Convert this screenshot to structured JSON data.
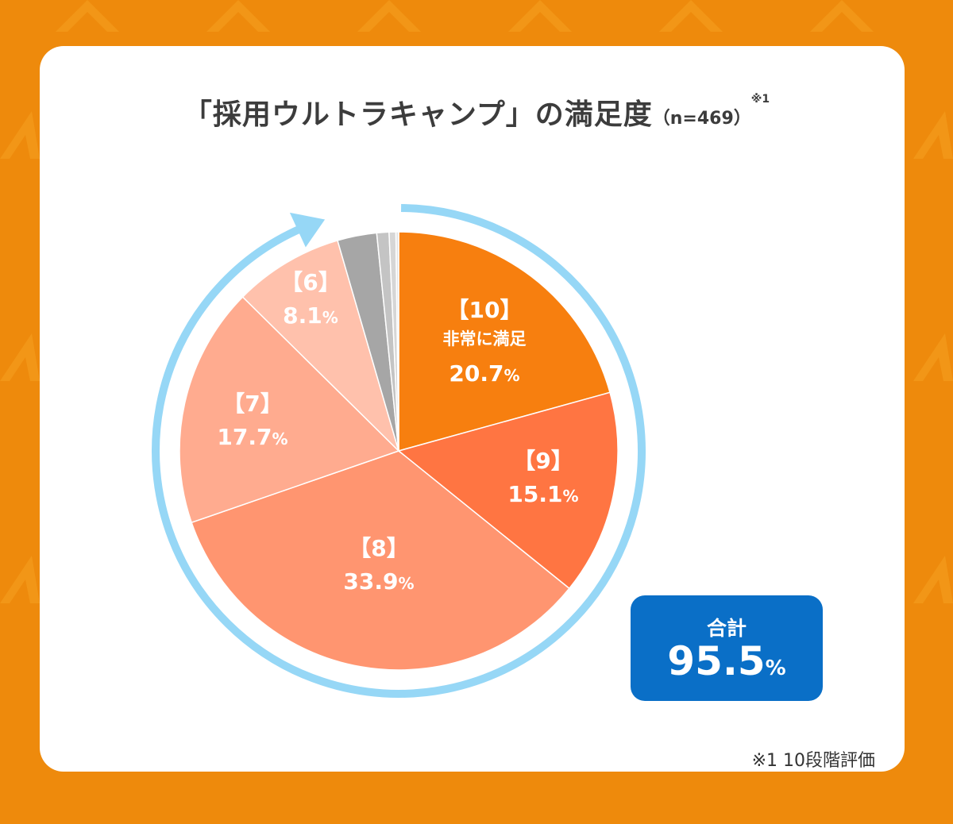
{
  "title": {
    "main": "「採用ウルトラキャンプ」の満足度",
    "sample": "（n=469）",
    "note_mark": "※1"
  },
  "chart_data": {
    "type": "pie",
    "slices": [
      {
        "rating": "【10】",
        "sublabel": "非常に満足",
        "value": 20.7,
        "value_text": "20.7",
        "color": "#f77f0f"
      },
      {
        "rating": "【9】",
        "sublabel": "",
        "value": 15.1,
        "value_text": "15.1",
        "color": "#ff7542"
      },
      {
        "rating": "【8】",
        "sublabel": "",
        "value": 33.9,
        "value_text": "33.9",
        "color": "#ff9570"
      },
      {
        "rating": "【7】",
        "sublabel": "",
        "value": 17.7,
        "value_text": "17.7",
        "color": "#ffab8f"
      },
      {
        "rating": "【6】",
        "sublabel": "",
        "value": 8.1,
        "value_text": "8.1",
        "color": "#ffc1ac"
      },
      {
        "rating": "",
        "sublabel": "",
        "value": 2.9,
        "value_text": "",
        "color": "#a6a6a6"
      },
      {
        "rating": "",
        "sublabel": "",
        "value": 0.9,
        "value_text": "",
        "color": "#c4c4c4"
      },
      {
        "rating": "",
        "sublabel": "",
        "value": 0.5,
        "value_text": "",
        "color": "#d6d6d6"
      },
      {
        "rating": "",
        "sublabel": "",
        "value": 0.2,
        "value_text": "",
        "color": "#e4e4e4"
      }
    ],
    "percent_sign": "%",
    "arrow_color": "#96d7f6"
  },
  "total": {
    "label": "合計",
    "value": "95.5",
    "unit": "%"
  },
  "footnote": "※1  10段階評価"
}
